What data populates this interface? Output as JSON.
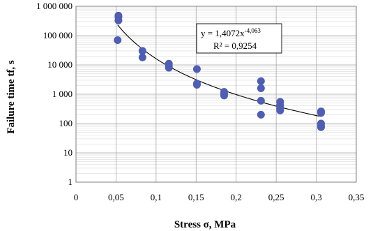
{
  "chart_data": {
    "type": "scatter",
    "xlabel": "Stress σ, MPa",
    "ylabel": "Failure time tf, s",
    "x_ticks": [
      "0",
      "0,05",
      "0,1",
      "0,15",
      "0,2",
      "0,25",
      "0,3",
      "0,35"
    ],
    "y_ticks": [
      "1",
      "10",
      "100",
      "1 000",
      "10 000",
      "100 000",
      "1 000 000"
    ],
    "xlim": [
      0,
      0.35
    ],
    "ylim": [
      1,
      1000000
    ],
    "y_scale": "log",
    "grid": true,
    "legend": "none",
    "marker_color": "#4f5eb0",
    "series": [
      {
        "points": [
          {
            "x": 0.053,
            "y": 480000
          },
          {
            "x": 0.053,
            "y": 430000
          },
          {
            "x": 0.053,
            "y": 330000
          },
          {
            "x": 0.052,
            "y": 70000
          },
          {
            "x": 0.083,
            "y": 30000
          },
          {
            "x": 0.083,
            "y": 18000
          },
          {
            "x": 0.116,
            "y": 11000
          },
          {
            "x": 0.116,
            "y": 9000
          },
          {
            "x": 0.116,
            "y": 8000
          },
          {
            "x": 0.151,
            "y": 7200
          },
          {
            "x": 0.151,
            "y": 2300
          },
          {
            "x": 0.151,
            "y": 2100
          },
          {
            "x": 0.185,
            "y": 1200
          },
          {
            "x": 0.185,
            "y": 1050
          },
          {
            "x": 0.185,
            "y": 900
          },
          {
            "x": 0.231,
            "y": 2800
          },
          {
            "x": 0.231,
            "y": 1600
          },
          {
            "x": 0.231,
            "y": 600
          },
          {
            "x": 0.231,
            "y": 200
          },
          {
            "x": 0.255,
            "y": 550
          },
          {
            "x": 0.255,
            "y": 420
          },
          {
            "x": 0.255,
            "y": 330
          },
          {
            "x": 0.255,
            "y": 280
          },
          {
            "x": 0.306,
            "y": 260
          },
          {
            "x": 0.306,
            "y": 230
          },
          {
            "x": 0.306,
            "y": 100
          },
          {
            "x": 0.306,
            "y": 85
          },
          {
            "x": 0.306,
            "y": 75
          }
        ]
      }
    ],
    "trendline": {
      "type": "power",
      "coefficient": 1.4072,
      "exponent": -4.063,
      "x_range": [
        0.052,
        0.306
      ]
    },
    "annotation": {
      "equation_base": "y = 1,4072x",
      "equation_exponent": "-4,063",
      "r_squared": "R² = 0,9254"
    }
  }
}
